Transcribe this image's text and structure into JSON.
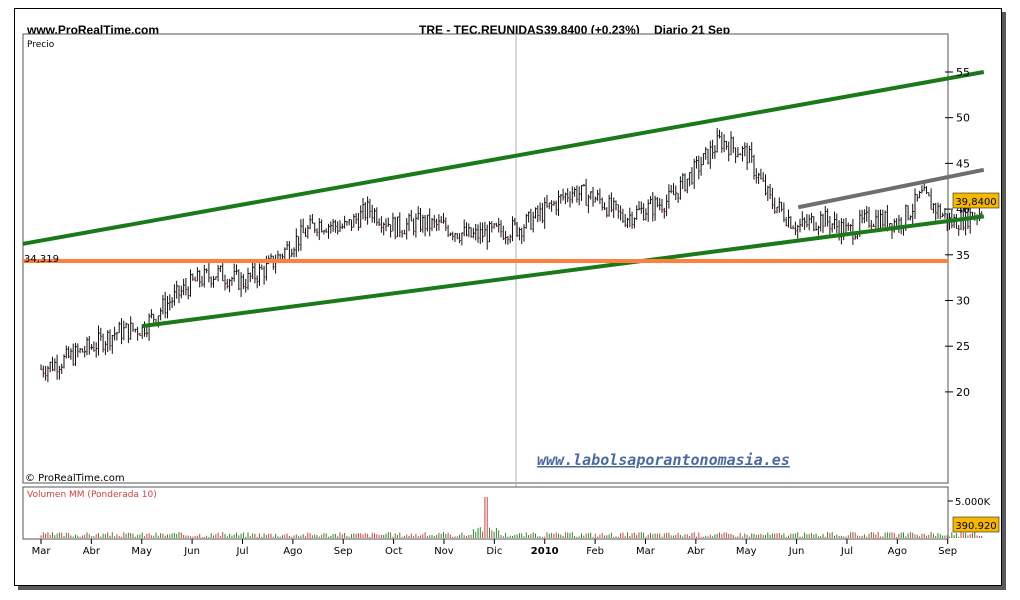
{
  "header": {
    "site": "www.ProRealTime.com",
    "ticker": "TRE - TEC.REUNIDAS",
    "price_change": "39,8400 (+0,23%)",
    "period_date": "Diario  21 Sep"
  },
  "labels": {
    "price_panel": "Precio",
    "volume_panel": "Volumen MM (Ponderada 10)",
    "copyright": "© ProRealTime.com",
    "watermark": "www.labolsaporantonomasia.es"
  },
  "badges": {
    "last_price": "39,8400",
    "last_volume": "390.920",
    "support_level": "34,319"
  },
  "colors": {
    "channel": "#1a7a1a",
    "support": "#ff7f3f",
    "resistance": "#6e6e6e",
    "badge_bg": "#f5b800",
    "watermark": "#4a6aa0",
    "volume": "#2a8a2a"
  },
  "chart_data": {
    "type": "line",
    "y_ticks": [
      "55",
      "50",
      "45",
      "40",
      "35",
      "30",
      "25",
      "20"
    ],
    "x_ticks": [
      "Mar",
      "Abr",
      "May",
      "Jun",
      "Jul",
      "Ago",
      "Sep",
      "Oct",
      "Nov",
      "Dic",
      "2010",
      "Feb",
      "Mar",
      "Abr",
      "May",
      "Jun",
      "Jul",
      "Ago",
      "Sep"
    ],
    "ylim": [
      20,
      57
    ],
    "price_series": {
      "name": "TRE - TEC.REUNIDAS",
      "x": [
        "2009-03-01",
        "2009-03-15",
        "2009-04-01",
        "2009-04-15",
        "2009-05-01",
        "2009-05-15",
        "2009-06-01",
        "2009-06-15",
        "2009-07-01",
        "2009-07-15",
        "2009-08-01",
        "2009-08-15",
        "2009-09-01",
        "2009-09-15",
        "2009-10-01",
        "2009-10-15",
        "2009-11-01",
        "2009-11-15",
        "2009-12-01",
        "2009-12-15",
        "2010-01-01",
        "2010-01-15",
        "2010-02-01",
        "2010-02-15",
        "2010-03-01",
        "2010-03-15",
        "2010-04-01",
        "2010-04-15",
        "2010-05-01",
        "2010-05-15",
        "2010-06-01",
        "2010-06-15",
        "2010-07-01",
        "2010-07-15",
        "2010-08-01",
        "2010-08-15",
        "2010-09-01",
        "2010-09-21"
      ],
      "values": [
        22.5,
        23.5,
        25,
        26.5,
        27,
        29.5,
        32,
        33,
        32,
        33.5,
        36.5,
        38.5,
        38,
        40,
        38,
        38.5,
        38,
        37,
        37.5,
        38,
        40,
        42,
        41,
        39,
        40,
        41,
        44.5,
        47.5,
        46,
        41,
        38,
        39,
        37.5,
        39,
        38.5,
        41.5,
        38.5,
        39.84
      ]
    },
    "trendlines": [
      {
        "name": "Canal superior",
        "x": [
          "2009-03-01",
          "2010-09-21"
        ],
        "values": [
          36.2,
          55.0
        ]
      },
      {
        "name": "Canal inferior",
        "x": [
          "2009-05-01",
          "2010-09-21"
        ],
        "values": [
          27.2,
          39.2
        ]
      },
      {
        "name": "Soporte",
        "x": [
          "2009-03-01",
          "2010-09-21"
        ],
        "values": [
          34.319,
          34.319
        ]
      },
      {
        "name": "Resistencia",
        "x": [
          "2010-06-01",
          "2010-09-21"
        ],
        "values": [
          40.2,
          44.3
        ]
      }
    ],
    "volume": {
      "name": "Volumen MM (Ponderada 10)",
      "ytick": "5.000K",
      "last": "390.920",
      "peak_label_date": "2009-11-25"
    }
  }
}
